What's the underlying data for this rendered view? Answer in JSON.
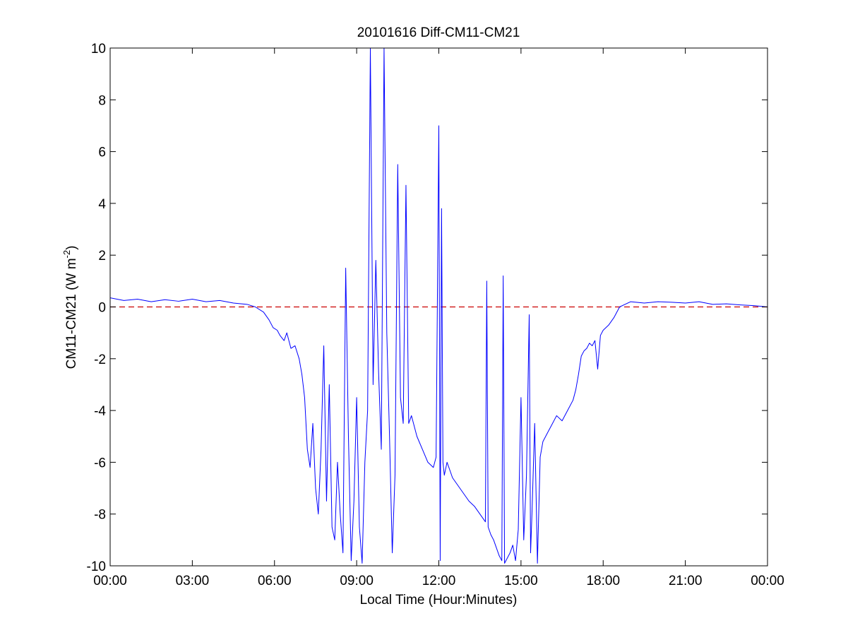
{
  "chart_data": {
    "type": "line",
    "title": "20101616 Diff-CM11-CM21",
    "xlabel": "Local Time (Hour:Minutes)",
    "ylabel": "CM11-CM21 (W m",
    "ylabel_superscript": "-2",
    "ylabel_suffix": ")",
    "xlim": [
      0,
      24
    ],
    "ylim": [
      -10,
      10
    ],
    "x_tick_values": [
      0,
      3,
      6,
      9,
      12,
      15,
      18,
      21,
      24
    ],
    "x_tick_labels": [
      "00:00",
      "03:00",
      "06:00",
      "09:00",
      "12:00",
      "15:00",
      "18:00",
      "21:00",
      "00:00"
    ],
    "y_tick_values": [
      -10,
      -8,
      -6,
      -4,
      -2,
      0,
      2,
      4,
      6,
      8,
      10
    ],
    "y_tick_labels": [
      "-10",
      "-8",
      "-6",
      "-4",
      "-2",
      "0",
      "2",
      "4",
      "6",
      "8",
      "10"
    ],
    "grid": false,
    "reference_line": {
      "y": 0,
      "color": "#cc0000",
      "style": "dashed"
    },
    "series": [
      {
        "color": "#0000ff",
        "x": [
          0,
          0.5,
          1.0,
          1.5,
          2.0,
          2.5,
          3.0,
          3.5,
          4.0,
          4.5,
          5.0,
          5.3,
          5.6,
          5.8,
          5.95,
          6.1,
          6.2,
          6.35,
          6.45,
          6.6,
          6.75,
          6.9,
          7.0,
          7.1,
          7.2,
          7.3,
          7.4,
          7.5,
          7.6,
          7.7,
          7.8,
          7.9,
          8.0,
          8.1,
          8.2,
          8.3,
          8.4,
          8.5,
          8.6,
          8.7,
          8.8,
          8.9,
          9.0,
          9.1,
          9.2,
          9.3,
          9.4,
          9.5,
          9.6,
          9.7,
          9.8,
          9.9,
          10.0,
          10.1,
          10.2,
          10.3,
          10.4,
          10.5,
          10.6,
          10.7,
          10.8,
          10.9,
          11.0,
          11.2,
          11.4,
          11.6,
          11.8,
          11.9,
          12.0,
          12.05,
          12.1,
          12.15,
          12.2,
          12.3,
          12.5,
          12.7,
          12.9,
          13.1,
          13.3,
          13.5,
          13.7,
          13.75,
          13.8,
          13.9,
          14.0,
          14.1,
          14.2,
          14.3,
          14.35,
          14.4,
          14.5,
          14.6,
          14.7,
          14.8,
          14.9,
          15.0,
          15.1,
          15.2,
          15.3,
          15.35,
          15.4,
          15.5,
          15.6,
          15.7,
          15.8,
          15.9,
          16.0,
          16.1,
          16.3,
          16.5,
          16.7,
          16.9,
          17.0,
          17.1,
          17.2,
          17.3,
          17.4,
          17.5,
          17.6,
          17.7,
          17.8,
          17.9,
          18.0,
          18.2,
          18.4,
          18.6,
          18.8,
          19.0,
          19.5,
          20.0,
          20.5,
          21.0,
          21.5,
          22.0,
          22.5,
          23.0,
          23.5,
          24.0
        ],
        "y": [
          0.35,
          0.25,
          0.3,
          0.2,
          0.28,
          0.22,
          0.3,
          0.2,
          0.25,
          0.15,
          0.1,
          0.0,
          -0.2,
          -0.5,
          -0.8,
          -0.9,
          -1.1,
          -1.3,
          -1.0,
          -1.6,
          -1.5,
          -2.0,
          -2.6,
          -3.5,
          -5.5,
          -6.2,
          -4.5,
          -7.0,
          -8.0,
          -5.5,
          -1.5,
          -7.5,
          -3.0,
          -8.5,
          -9.0,
          -6.0,
          -8.0,
          -9.5,
          1.5,
          -5.0,
          -9.8,
          -7.5,
          -3.5,
          -8.5,
          -9.9,
          -6.0,
          -4.0,
          10.0,
          -3.0,
          1.8,
          -2.5,
          -5.5,
          10.0,
          -1.0,
          -5.0,
          -9.5,
          -6.5,
          5.5,
          -3.5,
          -4.5,
          4.7,
          -4.5,
          -4.2,
          -5.0,
          -5.5,
          -6.0,
          -6.2,
          -5.8,
          7.0,
          -9.8,
          3.8,
          -6.0,
          -6.5,
          -6.0,
          -6.6,
          -6.9,
          -7.2,
          -7.5,
          -7.7,
          -8.0,
          -8.3,
          1.0,
          -8.5,
          -8.8,
          -9.0,
          -9.3,
          -9.6,
          -9.8,
          1.2,
          -9.9,
          -9.7,
          -9.5,
          -9.2,
          -9.8,
          -8.6,
          -3.5,
          -9.0,
          -6.5,
          -0.3,
          -9.5,
          -8.0,
          -4.5,
          -9.9,
          -5.8,
          -5.2,
          -5.0,
          -4.8,
          -4.6,
          -4.2,
          -4.4,
          -4.0,
          -3.6,
          -3.2,
          -2.6,
          -1.9,
          -1.7,
          -1.6,
          -1.4,
          -1.5,
          -1.3,
          -2.4,
          -1.1,
          -0.9,
          -0.7,
          -0.4,
          0.0,
          0.1,
          0.2,
          0.15,
          0.2,
          0.18,
          0.15,
          0.2,
          0.1,
          0.12,
          0.08,
          0.05,
          0.0
        ]
      }
    ]
  }
}
